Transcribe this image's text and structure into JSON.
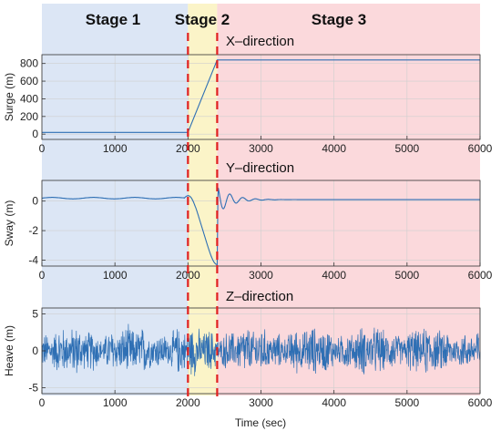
{
  "stages": {
    "s1": {
      "label": "Stage 1",
      "color": "#dce6f5"
    },
    "s2": {
      "label": "Stage 2",
      "color": "#fbf4c8"
    },
    "s3": {
      "label": "Stage 3",
      "color": "#fbd9dc"
    },
    "boundaries_sec": [
      2000,
      2400
    ],
    "divider_color": "#e02020"
  },
  "xlabel": "Time (sec)",
  "line_color": "#2e6fb4",
  "chart_data": [
    {
      "type": "line",
      "title": "X–direction",
      "ylabel": "Surge (m)",
      "xlim": [
        0,
        6000
      ],
      "ylim": [
        -60,
        900
      ],
      "xticks": [
        0,
        1000,
        2000,
        3000,
        4000,
        5000,
        6000
      ],
      "yticks": [
        0,
        200,
        400,
        600,
        800
      ],
      "grid": true,
      "series": [
        {
          "description": "approximately constant ~20 before 2000 s, linear ramp to ~840 by ~2400 s, then constant ~840",
          "x": [
            0,
            2000,
            2400,
            6000
          ],
          "y": [
            20,
            20,
            840,
            840
          ]
        }
      ]
    },
    {
      "type": "line",
      "title": "Y–direction",
      "ylabel": "Sway (m)",
      "xlim": [
        0,
        6000
      ],
      "ylim": [
        -4.4,
        1.4
      ],
      "xticks": [
        0,
        1000,
        2000,
        3000,
        4000,
        5000,
        6000
      ],
      "yticks": [
        -4,
        -2,
        0
      ],
      "grid": true,
      "series": [
        {
          "description": "small oscillation near 0.2 before 2000 s, dips to about -4.3 near 2350 s, spikes to ~1.1 at 2400 s, then decaying oscillation back to ~0.1",
          "x": [
            0,
            1900,
            2000,
            2100,
            2200,
            2300,
            2350,
            2400,
            2500,
            2700,
            3000,
            6000
          ],
          "y": [
            0.2,
            0.2,
            0.4,
            -0.5,
            -2.0,
            -3.8,
            -4.3,
            1.1,
            -0.6,
            0.3,
            0.15,
            0.1
          ]
        }
      ]
    },
    {
      "type": "line",
      "title": "Z–direction",
      "ylabel": "Heave (m)",
      "xlim": [
        0,
        6000
      ],
      "ylim": [
        -5.8,
        5.8
      ],
      "xticks": [
        0,
        1000,
        2000,
        3000,
        4000,
        5000,
        6000
      ],
      "yticks": [
        -5,
        0,
        5
      ],
      "grid": true,
      "series": [
        {
          "description": "random wave-induced heave oscillating around 0 with amplitude typically ±2–4 m, peaks near ±5 m",
          "x_range": [
            0,
            6000
          ],
          "mean": 0,
          "typical_amplitude": 3,
          "peak_amplitude": 5
        }
      ]
    }
  ]
}
